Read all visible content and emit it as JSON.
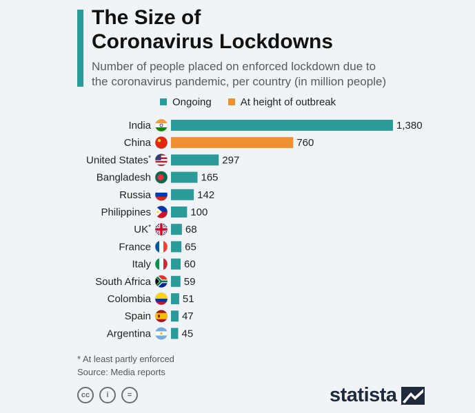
{
  "header": {
    "title_line1": "The Size of",
    "title_line2": "Coronavirus Lockdowns",
    "subtitle_line1": "Number of people placed on enforced lockdown due to",
    "subtitle_line2": "the coronavirus pandemic, per country (in million people)"
  },
  "colors": {
    "accent": "#2b9b99",
    "ongoing": "#2b9b99",
    "outbreak": "#ef9130",
    "background": "#f1f4f6"
  },
  "legend": [
    {
      "label": "Ongoing",
      "color": "#2b9b99"
    },
    {
      "label": "At height of outbreak",
      "color": "#ef9130"
    }
  ],
  "chart_data": {
    "type": "bar",
    "orientation": "horizontal",
    "categories": [
      "India",
      "China",
      "United States*",
      "Bangladesh",
      "Russia",
      "Philippines",
      "UK*",
      "France",
      "Italy",
      "South Africa",
      "Colombia",
      "Spain",
      "Argentina"
    ],
    "values": [
      1380,
      760,
      297,
      165,
      142,
      100,
      68,
      65,
      60,
      59,
      51,
      47,
      45
    ],
    "value_labels": [
      "1,380",
      "760",
      "297",
      "165",
      "142",
      "100",
      "68",
      "65",
      "60",
      "59",
      "51",
      "47",
      "45"
    ],
    "status": [
      "Ongoing",
      "At height of outbreak",
      "Ongoing",
      "Ongoing",
      "Ongoing",
      "Ongoing",
      "Ongoing",
      "Ongoing",
      "Ongoing",
      "Ongoing",
      "Ongoing",
      "Ongoing",
      "Ongoing"
    ],
    "flag_icons": [
      "india-flag-icon",
      "china-flag-icon",
      "usa-flag-icon",
      "bangladesh-flag-icon",
      "russia-flag-icon",
      "philippines-flag-icon",
      "uk-flag-icon",
      "france-flag-icon",
      "italy-flag-icon",
      "south-africa-flag-icon",
      "colombia-flag-icon",
      "spain-flag-icon",
      "argentina-flag-icon"
    ],
    "xlim": [
      0,
      1380
    ],
    "grid": false,
    "legend_position": "top"
  },
  "footer": {
    "note": "* At least partly enforced",
    "source": "Source: Media reports",
    "cc_icons": [
      "cc-icon",
      "attribution-icon",
      "no-derivatives-icon"
    ],
    "cc_labels": [
      "cc",
      "i",
      "="
    ],
    "brand": "statista"
  }
}
